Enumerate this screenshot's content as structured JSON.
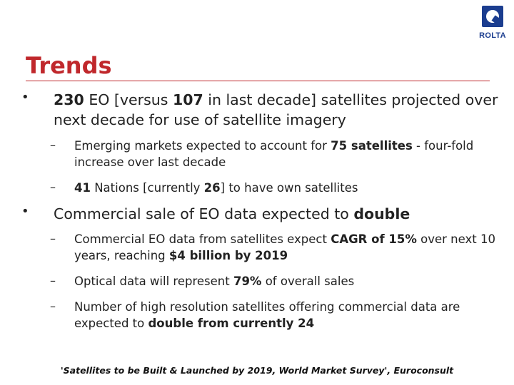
{
  "slide": {
    "title": "Trends",
    "logo_text": "ROLTA",
    "bullets": [
      {
        "symbol": "•",
        "parts": [
          {
            "text": "230",
            "bold": true
          },
          {
            "text": " EO [versus ",
            "bold": false
          },
          {
            "text": "107",
            "bold": true
          },
          {
            "text": " in last decade] satellites projected over next decade for use of satellite imagery",
            "bold": false
          }
        ],
        "sub": [
          {
            "symbol": "–",
            "parts": [
              {
                "text": "Emerging markets expected to account for ",
                "bold": false
              },
              {
                "text": "75 satellites",
                "bold": true
              },
              {
                "text": " - four-fold increase over last decade",
                "bold": false
              }
            ]
          },
          {
            "symbol": "–",
            "parts": [
              {
                "text": "41",
                "bold": true
              },
              {
                "text": " Nations [currently ",
                "bold": false
              },
              {
                "text": "26",
                "bold": true
              },
              {
                "text": "] to have own satellites",
                "bold": false
              }
            ]
          }
        ]
      },
      {
        "symbol": "•",
        "parts": [
          {
            "text": "Commercial sale of EO data expected to ",
            "bold": false
          },
          {
            "text": "double",
            "bold": true
          }
        ],
        "sub": [
          {
            "symbol": "–",
            "parts": [
              {
                "text": "Commercial EO data from satellites expect ",
                "bold": false
              },
              {
                "text": "CAGR of 15%",
                "bold": true
              },
              {
                "text": " over next 10 years, reaching ",
                "bold": false
              },
              {
                "text": "$4 billion by 2019",
                "bold": true
              }
            ]
          },
          {
            "symbol": "–",
            "parts": [
              {
                "text": "Optical data will represent ",
                "bold": false
              },
              {
                "text": "79%",
                "bold": true
              },
              {
                "text": " of overall sales",
                "bold": false
              }
            ]
          },
          {
            "symbol": "–",
            "parts": [
              {
                "text": "Number of high resolution satellites offering commercial data are expected to ",
                "bold": false
              },
              {
                "text": "double from currently 24",
                "bold": true
              }
            ]
          }
        ]
      }
    ],
    "source": "'Satellites to be Built & Launched by 2019, World Market Survey', Euroconsult"
  }
}
